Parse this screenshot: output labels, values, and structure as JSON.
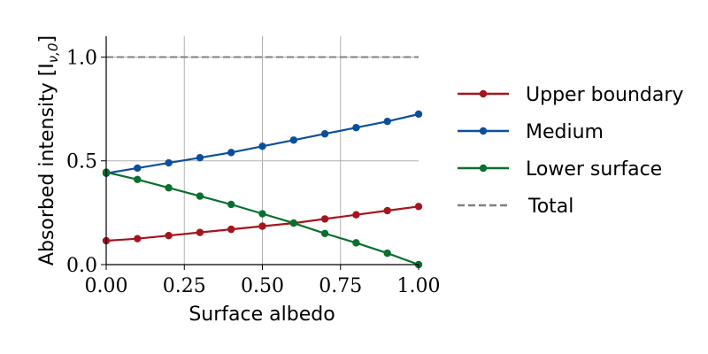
{
  "chart_data": {
    "type": "line",
    "xlabel": "Surface albedo",
    "ylabel": "Absorbed intensity [I",
    "ylabel_sub": "ν,0",
    "ylabel_close": "]",
    "xlim": [
      0,
      1
    ],
    "ylim": [
      0,
      1.1
    ],
    "grid": "x-and-y",
    "legend_placement": "right",
    "x_ticks": [
      0,
      0.25,
      0.5,
      0.75,
      1.0
    ],
    "x_tick_labels": [
      "0.00",
      "0.25",
      "0.50",
      "0.75",
      "1.00"
    ],
    "y_ticks": [
      0,
      0.5,
      1.0
    ],
    "y_tick_labels": [
      "0.0",
      "0.5",
      "1.0"
    ],
    "x": [
      0.0,
      0.1,
      0.2,
      0.3,
      0.4,
      0.5,
      0.6,
      0.7,
      0.8,
      0.9,
      1.0
    ],
    "series": [
      {
        "name": "Upper boundary",
        "color": "#a5141c",
        "style": "solid-markers",
        "values": [
          0.115,
          0.125,
          0.14,
          0.155,
          0.17,
          0.185,
          0.2,
          0.22,
          0.24,
          0.26,
          0.28
        ]
      },
      {
        "name": "Medium",
        "color": "#0b4f9c",
        "style": "solid-markers",
        "values": [
          0.44,
          0.465,
          0.49,
          0.515,
          0.54,
          0.57,
          0.6,
          0.63,
          0.66,
          0.69,
          0.725
        ]
      },
      {
        "name": "Lower surface",
        "color": "#09702f",
        "style": "solid-markers",
        "values": [
          0.445,
          0.41,
          0.37,
          0.33,
          0.29,
          0.245,
          0.2,
          0.15,
          0.105,
          0.055,
          0.0
        ]
      },
      {
        "name": "Total",
        "color": "#808080",
        "style": "dashed",
        "values": [
          1.0,
          1.0,
          1.0,
          1.0,
          1.0,
          1.0,
          1.0,
          1.0,
          1.0,
          1.0,
          1.0
        ]
      }
    ]
  }
}
